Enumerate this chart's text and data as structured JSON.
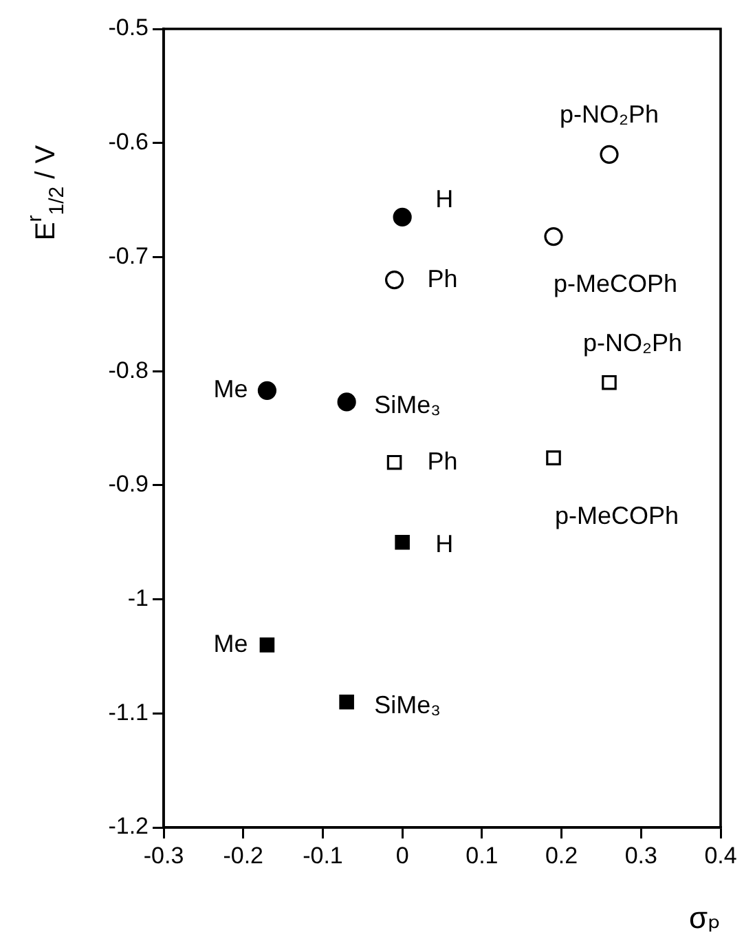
{
  "chart_data": {
    "type": "scatter",
    "xlabel": "σₚ",
    "ylabel": "E$^{r}$$_{1/2}$ / V",
    "xlim": [
      -0.3,
      0.4
    ],
    "xticks": [
      -0.3,
      -0.2,
      -0.1,
      0,
      0.1,
      0.2,
      0.3,
      0.4
    ],
    "ylim": [
      -1.2,
      -0.5
    ],
    "yticks": [
      -1.2,
      -1.1,
      -1,
      -0.9,
      -0.8,
      -0.7,
      -0.6,
      -0.5
    ],
    "grid": false,
    "legend": false,
    "series": [
      {
        "color": "#000000",
        "marker": "circle",
        "x": [
          -0.17,
          -0.07,
          0
        ],
        "values": [
          -0.817,
          -0.827,
          -0.665
        ]
      },
      {
        "color": "#ffffff",
        "marker": "circle",
        "x": [
          -0.01,
          0.19,
          0.26
        ],
        "values": [
          -0.72,
          -0.682,
          -0.61
        ]
      },
      {
        "color": "#000000",
        "marker": "square",
        "x": [
          -0.17,
          -0.07,
          0
        ],
        "values": [
          -1.04,
          -1.09,
          -0.95
        ]
      },
      {
        "color": "#ffffff",
        "marker": "square",
        "x": [
          -0.01,
          0.19,
          0.26
        ],
        "values": [
          -0.88,
          -0.876,
          -0.81
        ]
      }
    ],
    "annotations": [
      {
        "text": "H",
        "x": 0,
        "y": -0.665
      },
      {
        "text": "Ph",
        "x": -0.01,
        "y": -0.72
      },
      {
        "text": "Me",
        "x": -0.17,
        "y": -0.817
      },
      {
        "text": "SiMe₃",
        "x": -0.07,
        "y": -0.827
      },
      {
        "text": "p-NO₂Ph",
        "x": 0.26,
        "y": -0.61
      },
      {
        "text": "p-MeCOPh",
        "x": 0.19,
        "y": -0.682
      },
      {
        "text": "p-NO₂Ph",
        "x": 0.26,
        "y": -0.81
      },
      {
        "text": "Ph",
        "x": -0.01,
        "y": -0.88
      },
      {
        "text": "p-MeCOPh",
        "x": 0.19,
        "y": -0.876
      },
      {
        "text": "H",
        "x": 0,
        "y": -0.95
      },
      {
        "text": "Me",
        "x": -0.17,
        "y": -1.04
      },
      {
        "text": "SiMe₃",
        "x": -0.07,
        "y": -1.09
      }
    ]
  }
}
